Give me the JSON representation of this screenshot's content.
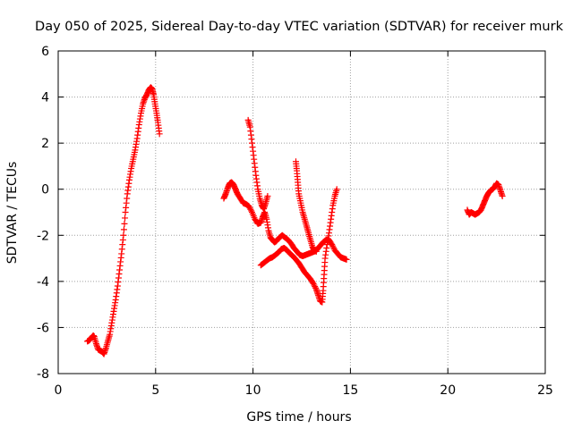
{
  "chart_data": {
    "type": "scatter",
    "title": "Day 050 of 2025, Sidereal Day-to-day VTEC variation (SDTVAR) for receiver murk",
    "xlabel": "GPS time / hours",
    "ylabel": "SDTVAR / TECUs",
    "xlim": [
      0,
      25
    ],
    "ylim": [
      -8,
      6
    ],
    "xticks": [
      0,
      5,
      10,
      15,
      20,
      25
    ],
    "yticks": [
      -8,
      -6,
      -4,
      -2,
      0,
      2,
      4,
      6
    ],
    "grid": true,
    "marker": "+",
    "series": [
      {
        "color": "#ff0000",
        "segments": [
          [
            [
              1.5,
              -6.6
            ],
            [
              1.6,
              -6.55
            ],
            [
              1.7,
              -6.45
            ],
            [
              1.8,
              -6.35
            ],
            [
              1.85,
              -6.4
            ],
            [
              1.95,
              -6.7
            ],
            [
              2.05,
              -6.95
            ],
            [
              2.15,
              -7.0
            ],
            [
              2.25,
              -7.05
            ],
            [
              2.35,
              -7.15
            ],
            [
              2.45,
              -6.9
            ],
            [
              2.55,
              -6.6
            ],
            [
              2.65,
              -6.3
            ],
            [
              2.75,
              -5.8
            ],
            [
              2.85,
              -5.3
            ],
            [
              2.95,
              -4.8
            ],
            [
              3.05,
              -4.2
            ],
            [
              3.15,
              -3.5
            ],
            [
              3.25,
              -2.8
            ],
            [
              3.35,
              -2.0
            ],
            [
              3.45,
              -1.0
            ],
            [
              3.55,
              -0.2
            ],
            [
              3.65,
              0.4
            ],
            [
              3.75,
              0.9
            ],
            [
              3.85,
              1.3
            ],
            [
              3.95,
              1.7
            ],
            [
              4.05,
              2.2
            ],
            [
              4.15,
              2.8
            ],
            [
              4.25,
              3.3
            ],
            [
              4.35,
              3.7
            ],
            [
              4.45,
              3.95
            ],
            [
              4.55,
              4.1
            ],
            [
              4.65,
              4.3
            ],
            [
              4.75,
              4.42
            ],
            [
              4.82,
              4.35
            ],
            [
              4.9,
              4.1
            ],
            [
              4.97,
              3.7
            ],
            [
              5.05,
              3.3
            ],
            [
              5.12,
              2.9
            ],
            [
              5.2,
              2.4
            ]
          ],
          [
            [
              8.5,
              -0.4
            ],
            [
              8.6,
              -0.2
            ],
            [
              8.7,
              0.05
            ],
            [
              8.8,
              0.25
            ],
            [
              8.9,
              0.3
            ],
            [
              9.0,
              0.2
            ],
            [
              9.1,
              0.0
            ],
            [
              9.2,
              -0.2
            ],
            [
              9.35,
              -0.4
            ],
            [
              9.5,
              -0.6
            ],
            [
              9.65,
              -0.65
            ],
            [
              9.8,
              -0.75
            ],
            [
              9.95,
              -1.0
            ],
            [
              10.1,
              -1.3
            ],
            [
              10.25,
              -1.5
            ],
            [
              10.4,
              -1.45
            ],
            [
              10.5,
              -1.2
            ],
            [
              10.6,
              -1.0
            ],
            [
              10.7,
              -1.3
            ],
            [
              10.8,
              -1.8
            ],
            [
              10.9,
              -2.1
            ],
            [
              11.0,
              -2.2
            ],
            [
              11.1,
              -2.3
            ],
            [
              11.2,
              -2.25
            ],
            [
              11.35,
              -2.1
            ],
            [
              11.5,
              -2.0
            ],
            [
              11.65,
              -2.1
            ],
            [
              11.8,
              -2.2
            ],
            [
              11.95,
              -2.35
            ],
            [
              12.1,
              -2.55
            ],
            [
              12.25,
              -2.7
            ],
            [
              12.4,
              -2.85
            ],
            [
              12.55,
              -2.9
            ],
            [
              12.7,
              -2.85
            ],
            [
              12.85,
              -2.8
            ],
            [
              13.0,
              -2.75
            ],
            [
              13.15,
              -2.7
            ],
            [
              13.3,
              -2.6
            ],
            [
              13.45,
              -2.45
            ],
            [
              13.6,
              -2.3
            ],
            [
              13.75,
              -2.2
            ],
            [
              13.9,
              -2.2
            ],
            [
              14.05,
              -2.4
            ],
            [
              14.2,
              -2.65
            ],
            [
              14.35,
              -2.8
            ],
            [
              14.5,
              -2.95
            ],
            [
              14.65,
              -3.0
            ],
            [
              14.8,
              -3.05
            ]
          ],
          [
            [
              9.75,
              3.0
            ],
            [
              9.85,
              2.7
            ],
            [
              9.95,
              2.0
            ],
            [
              10.05,
              1.3
            ],
            [
              10.15,
              0.6
            ],
            [
              10.25,
              0.0
            ],
            [
              10.35,
              -0.4
            ],
            [
              10.45,
              -0.7
            ],
            [
              10.55,
              -0.85
            ],
            [
              10.65,
              -0.6
            ],
            [
              10.75,
              -0.3
            ]
          ],
          [
            [
              10.4,
              -3.3
            ],
            [
              10.55,
              -3.2
            ],
            [
              10.7,
              -3.1
            ],
            [
              10.85,
              -3.0
            ],
            [
              11.0,
              -2.95
            ],
            [
              11.15,
              -2.85
            ],
            [
              11.3,
              -2.75
            ],
            [
              11.45,
              -2.6
            ],
            [
              11.6,
              -2.55
            ],
            [
              11.75,
              -2.65
            ],
            [
              11.9,
              -2.8
            ],
            [
              12.05,
              -2.9
            ],
            [
              12.2,
              -3.05
            ],
            [
              12.35,
              -3.2
            ],
            [
              12.5,
              -3.4
            ],
            [
              12.65,
              -3.6
            ],
            [
              12.8,
              -3.75
            ],
            [
              12.95,
              -3.9
            ],
            [
              13.1,
              -4.1
            ],
            [
              13.25,
              -4.35
            ],
            [
              13.35,
              -4.6
            ],
            [
              13.45,
              -4.85
            ],
            [
              13.55,
              -4.9
            ],
            [
              13.6,
              -4.4
            ],
            [
              13.65,
              -3.7
            ],
            [
              13.7,
              -3.0
            ],
            [
              13.8,
              -2.4
            ],
            [
              13.9,
              -1.9
            ],
            [
              14.0,
              -1.3
            ],
            [
              14.1,
              -0.7
            ],
            [
              14.2,
              -0.3
            ],
            [
              14.3,
              0.0
            ]
          ],
          [
            [
              12.2,
              1.2
            ],
            [
              12.25,
              0.8
            ],
            [
              12.3,
              0.3
            ],
            [
              12.35,
              -0.2
            ],
            [
              12.45,
              -0.6
            ],
            [
              12.55,
              -1.0
            ],
            [
              12.65,
              -1.3
            ],
            [
              12.75,
              -1.6
            ],
            [
              12.85,
              -1.9
            ],
            [
              12.95,
              -2.2
            ],
            [
              13.05,
              -2.5
            ],
            [
              13.15,
              -2.65
            ],
            [
              13.25,
              -2.7
            ]
          ],
          [
            [
              21.0,
              -0.9
            ],
            [
              21.1,
              -1.1
            ],
            [
              21.2,
              -1.0
            ],
            [
              21.3,
              -1.05
            ],
            [
              21.4,
              -1.1
            ],
            [
              21.5,
              -1.05
            ],
            [
              21.6,
              -1.0
            ],
            [
              21.7,
              -0.9
            ],
            [
              21.8,
              -0.7
            ],
            [
              21.9,
              -0.5
            ],
            [
              22.0,
              -0.3
            ],
            [
              22.1,
              -0.15
            ],
            [
              22.2,
              -0.05
            ],
            [
              22.3,
              0.0
            ],
            [
              22.4,
              0.1
            ],
            [
              22.5,
              0.25
            ],
            [
              22.6,
              0.2
            ],
            [
              22.7,
              -0.05
            ],
            [
              22.8,
              -0.3
            ]
          ]
        ]
      }
    ]
  }
}
